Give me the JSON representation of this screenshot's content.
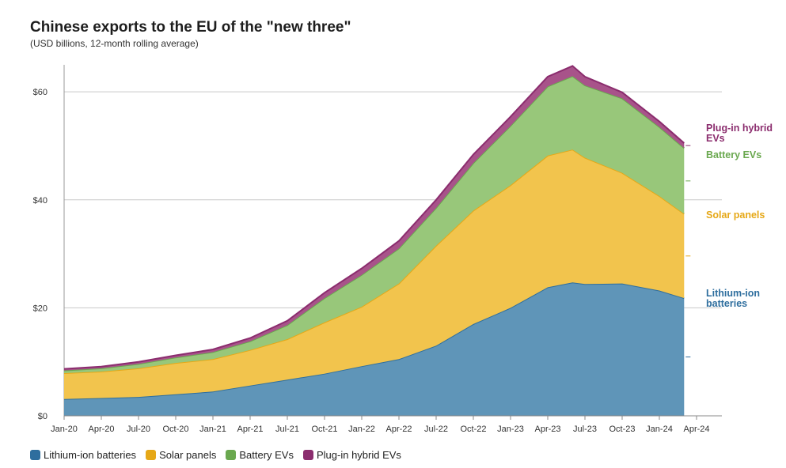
{
  "chart_data": {
    "type": "area",
    "stacked": true,
    "title": "Chinese exports to the EU of the \"new three\"",
    "subtitle": "(USD billions, 12-month rolling average)",
    "ylim": [
      0,
      65
    ],
    "yticks": [
      0,
      20,
      40,
      60
    ],
    "ytick_labels": [
      "$0",
      "$20",
      "$40",
      "$60"
    ],
    "xlim": [
      "2020-01",
      "2024-04"
    ],
    "xticks": [
      "2020-01",
      "2020-04",
      "2020-07",
      "2020-10",
      "2021-01",
      "2021-04",
      "2021-07",
      "2021-10",
      "2022-01",
      "2022-04",
      "2022-07",
      "2022-10",
      "2023-01",
      "2023-04",
      "2023-07",
      "2023-10",
      "2024-01",
      "2024-04"
    ],
    "xtick_labels": [
      "Jan-20",
      "Apr-20",
      "Jul-20",
      "Oct-20",
      "Jan-21",
      "Apr-21",
      "Jul-21",
      "Oct-21",
      "Jan-22",
      "Apr-22",
      "Jul-22",
      "Oct-22",
      "Jan-23",
      "Apr-23",
      "Jul-23",
      "Oct-23",
      "Jan-24",
      "Apr-24"
    ],
    "grid": "horizontal",
    "legend_position": "bottom-left",
    "x": [
      "2020-01",
      "2020-04",
      "2020-07",
      "2020-10",
      "2021-01",
      "2021-04",
      "2021-07",
      "2021-10",
      "2022-01",
      "2022-04",
      "2022-07",
      "2022-10",
      "2023-01",
      "2023-04",
      "2023-06",
      "2023-07",
      "2023-10",
      "2024-01",
      "2024-03"
    ],
    "series": [
      {
        "name": "Lithium-ion batteries",
        "color": "#2e6e9e",
        "fill": "#5f95b8",
        "values": [
          3.1,
          3.3,
          3.5,
          4.0,
          4.5,
          5.6,
          6.7,
          7.8,
          9.2,
          10.5,
          13.0,
          17.0,
          20.0,
          23.8,
          24.7,
          24.4,
          24.5,
          23.2,
          21.8
        ],
        "end_label": "Lithium-ion batteries"
      },
      {
        "name": "Solar panels",
        "color": "#e6a817",
        "fill": "#f2c44d",
        "values": [
          4.8,
          4.9,
          5.3,
          5.8,
          6.0,
          6.6,
          7.5,
          9.5,
          11.0,
          14.0,
          18.5,
          21.0,
          22.7,
          24.4,
          24.6,
          23.4,
          20.5,
          17.5,
          15.6
        ],
        "end_label": "Solar panels"
      },
      {
        "name": "Battery EVs",
        "color": "#6aa84f",
        "fill": "#98c77a",
        "values": [
          0.5,
          0.6,
          0.8,
          1.0,
          1.3,
          1.6,
          2.6,
          4.5,
          5.9,
          6.5,
          7.0,
          8.8,
          11.0,
          12.8,
          13.6,
          13.4,
          13.8,
          12.8,
          12.2
        ],
        "end_label": "Battery EVs"
      },
      {
        "name": "Plug-in hybrid EVs",
        "color": "#8b2d6e",
        "fill": "#a8538a",
        "values": [
          0.3,
          0.3,
          0.4,
          0.4,
          0.5,
          0.6,
          0.8,
          1.0,
          1.2,
          1.4,
          1.5,
          1.6,
          1.7,
          1.8,
          1.9,
          1.6,
          1.1,
          1.0,
          0.9
        ],
        "end_label": "Plug-in hybrid EVs"
      }
    ]
  }
}
